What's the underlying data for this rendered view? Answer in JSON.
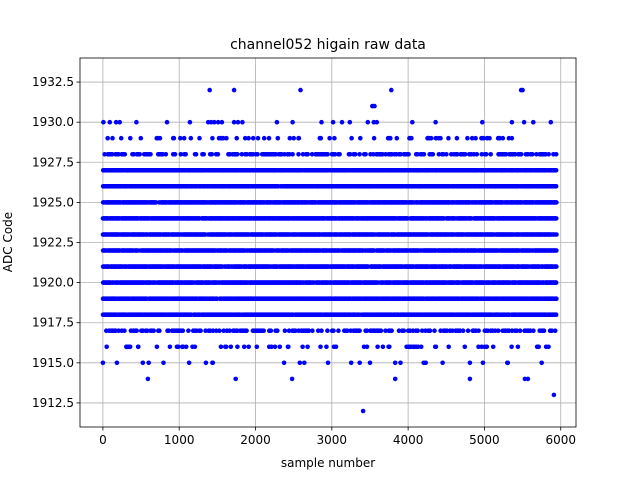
{
  "chart_data": {
    "type": "scatter",
    "title": "channel052 higain raw data",
    "xlabel": "sample number",
    "ylabel": "ADC Code",
    "xlim": [
      -300,
      6200
    ],
    "ylim": [
      1911,
      1934
    ],
    "x_ticks": [
      0,
      1000,
      2000,
      3000,
      4000,
      5000,
      6000
    ],
    "y_ticks": [
      1912.5,
      1915.0,
      1917.5,
      1920.0,
      1922.5,
      1925.0,
      1927.5,
      1930.0,
      1932.5
    ],
    "x_tick_labels": [
      "0",
      "1000",
      "2000",
      "3000",
      "4000",
      "5000",
      "6000"
    ],
    "y_tick_labels": [
      "1912.5",
      "1915.0",
      "1917.5",
      "1920.0",
      "1922.5",
      "1925.0",
      "1927.5",
      "1930.0",
      "1932.5"
    ],
    "grid": true,
    "marker_color": "#0000ff",
    "x_range": [
      0,
      5940
    ],
    "dense_levels": [
      1918,
      1919,
      1920,
      1921,
      1922,
      1923,
      1924,
      1925,
      1926,
      1927
    ],
    "medium_levels": [
      1928,
      1917
    ],
    "sparse_levels": [
      1929,
      1930,
      1916,
      1915
    ],
    "points": [
      [
        1400,
        1932
      ],
      [
        1720,
        1932
      ],
      [
        2590,
        1932
      ],
      [
        3780,
        1932
      ],
      [
        5480,
        1932
      ],
      [
        5500,
        1932
      ],
      [
        3560,
        1931
      ],
      [
        3530,
        1931
      ],
      [
        220,
        1930
      ],
      [
        840,
        1930
      ],
      [
        1140,
        1930
      ],
      [
        1380,
        1930
      ],
      [
        1420,
        1930
      ],
      [
        1460,
        1930
      ],
      [
        1560,
        1930
      ],
      [
        1720,
        1930
      ],
      [
        1770,
        1930
      ],
      [
        2280,
        1930
      ],
      [
        3550,
        1930
      ],
      [
        3590,
        1930
      ],
      [
        4360,
        1930
      ],
      [
        5360,
        1930
      ],
      [
        5520,
        1930
      ],
      [
        5640,
        1930
      ],
      [
        5870,
        1930
      ],
      [
        3410,
        1912
      ],
      [
        5910,
        1913
      ],
      [
        590,
        1914
      ],
      [
        1740,
        1914
      ],
      [
        2480,
        1914
      ],
      [
        3830,
        1914
      ],
      [
        4810,
        1914
      ],
      [
        5530,
        1914
      ],
      [
        5570,
        1914
      ],
      [
        600,
        1915
      ],
      [
        1130,
        1915
      ],
      [
        1350,
        1915
      ],
      [
        1440,
        1915
      ],
      [
        2580,
        1915
      ],
      [
        2640,
        1915
      ],
      [
        2950,
        1915
      ],
      [
        3500,
        1915
      ],
      [
        3830,
        1915
      ],
      [
        3900,
        1915
      ],
      [
        4810,
        1915
      ],
      [
        5300,
        1915
      ]
    ]
  }
}
